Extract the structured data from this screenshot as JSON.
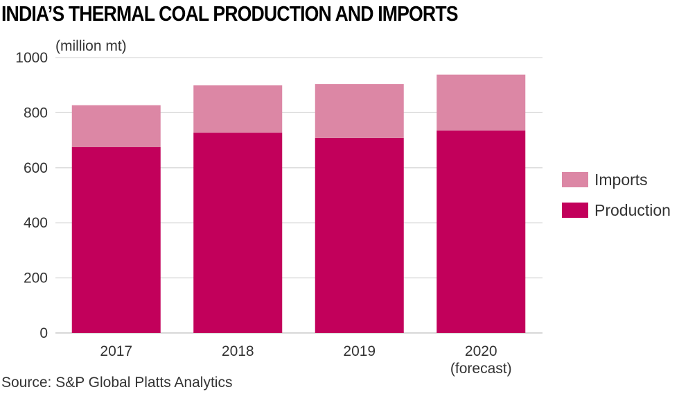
{
  "title": "INDIA’S THERMAL COAL PRODUCTION AND IMPORTS",
  "source": "Source: S&P Global Platts Analytics",
  "colors": {
    "production": "#c2005b",
    "imports": "#dc87a5",
    "grid": "#d9d9d9"
  },
  "chart_data": {
    "type": "bar",
    "stacked": true,
    "unit_label": "(million mt)",
    "categories": [
      [
        "2017"
      ],
      [
        "2018"
      ],
      [
        "2019"
      ],
      [
        "2020",
        "(forecast)"
      ]
    ],
    "series": [
      {
        "name": "Production",
        "values": [
          675,
          727,
          708,
          735
        ]
      },
      {
        "name": "Imports",
        "values": [
          152,
          172,
          196,
          203
        ]
      }
    ],
    "ylim": [
      0,
      1000
    ],
    "yticks": [
      0,
      200,
      400,
      600,
      800,
      1000
    ],
    "grid": true,
    "legend_position": "right",
    "legend_order": [
      "Imports",
      "Production"
    ]
  }
}
